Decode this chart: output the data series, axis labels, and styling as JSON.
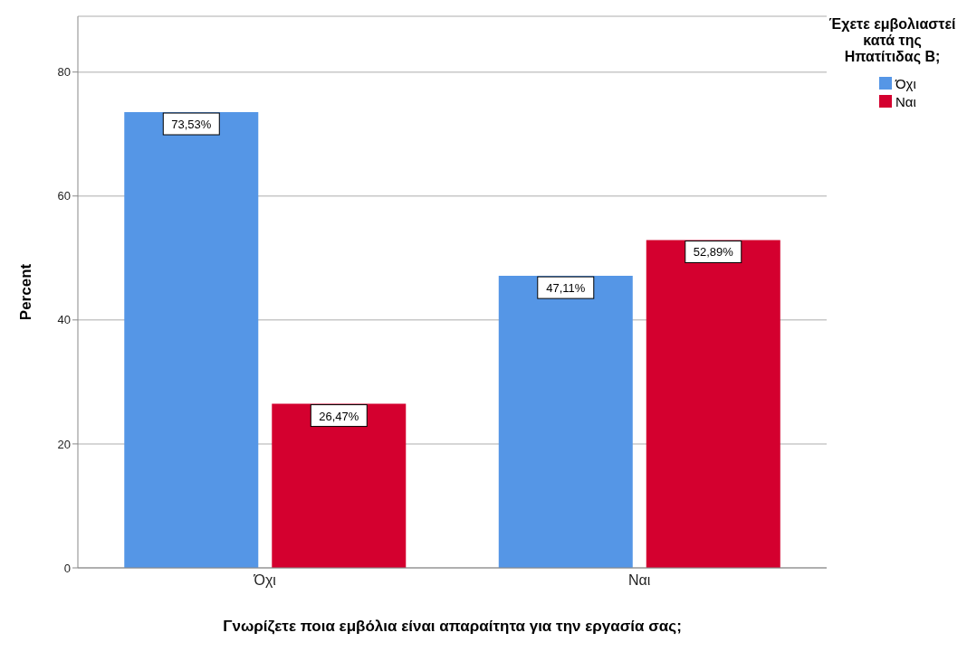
{
  "chart_data": {
    "type": "bar",
    "xlabel": "Γνωρίζετε ποια εμβόλια είναι απαραίτητα για την εργασία σας;",
    "ylabel": "Percent",
    "legend_title": "Έχετε εμβολιαστεί κατά της Ηπατίτιδας Β;",
    "categories": [
      "Όχι",
      "Ναι"
    ],
    "series": [
      {
        "name": "Όχι",
        "color": "#5596e6",
        "values": [
          73.53,
          47.11
        ],
        "value_labels": [
          "73,53%",
          "47,11%"
        ]
      },
      {
        "name": "Ναι",
        "color": "#d4002f",
        "values": [
          26.47,
          52.89
        ],
        "value_labels": [
          "26,47%",
          "52,89%"
        ]
      }
    ],
    "ylim": [
      0,
      89
    ],
    "yticks": [
      0,
      20,
      40,
      60,
      80
    ],
    "grid": "y",
    "legend": "top right"
  }
}
